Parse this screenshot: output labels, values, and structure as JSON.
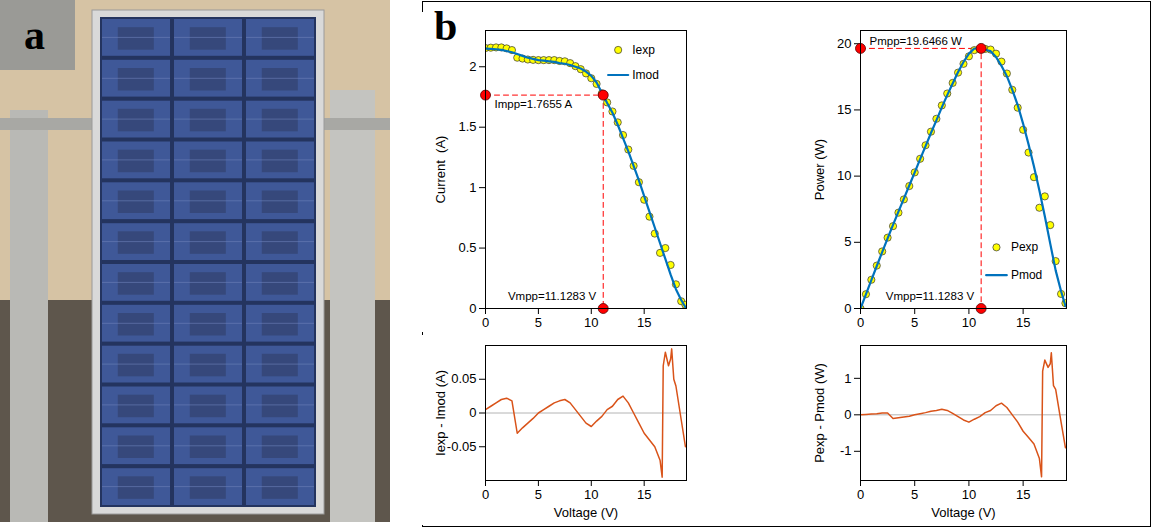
{
  "panel_labels": [
    "a",
    "b"
  ],
  "chart_data": [
    {
      "type": "line",
      "ylabel": "Current  (A)",
      "x": [
        0,
        0.5,
        1,
        1.5,
        2,
        2.5,
        3,
        3.5,
        4,
        4.5,
        5,
        5.5,
        6,
        6.5,
        7,
        7.5,
        8,
        8.5,
        9,
        9.5,
        10,
        10.5,
        11,
        11.5,
        12,
        12.5,
        13,
        13.5,
        14,
        14.5,
        15,
        15.5,
        16,
        16.5,
        17,
        17.5,
        18,
        18.5,
        18.9
      ],
      "xlim": [
        0,
        19
      ],
      "xticks": [
        0,
        5,
        10,
        15
      ],
      "ylim": [
        0,
        2.3
      ],
      "yticks": [
        0,
        0.5,
        1,
        1.5,
        2
      ],
      "legend": "upper right",
      "series": [
        {
          "name": "Iexp",
          "type": "scatter",
          "marker": "circle",
          "color": "#ffff00",
          "values": [
            2.155,
            2.158,
            2.16,
            2.16,
            2.152,
            2.138,
            2.075,
            2.068,
            2.06,
            2.057,
            2.055,
            2.055,
            2.055,
            2.055,
            2.048,
            2.045,
            2.03,
            2.005,
            1.98,
            1.945,
            1.905,
            1.858,
            1.78,
            1.705,
            1.63,
            1.54,
            1.435,
            1.315,
            1.18,
            1.045,
            0.9,
            0.76,
            0.62,
            0.46,
            0.5,
            0.36,
            0.2,
            0.06,
            0.03
          ]
        },
        {
          "name": "Imod",
          "type": "line",
          "line_style": "solid",
          "color": "#0072bd",
          "values": [
            2.15,
            2.148,
            2.145,
            2.14,
            2.13,
            2.12,
            2.105,
            2.09,
            2.075,
            2.065,
            2.055,
            2.05,
            2.045,
            2.04,
            2.03,
            2.025,
            2.015,
            2.0,
            1.985,
            1.96,
            1.925,
            1.87,
            1.785,
            1.7,
            1.62,
            1.52,
            1.41,
            1.3,
            1.18,
            1.06,
            0.93,
            0.8,
            0.67,
            0.54,
            0.41,
            0.28,
            0.16,
            0.07,
            0.01
          ]
        }
      ],
      "mpp": {
        "x": 11.1283,
        "y": 1.7655,
        "color": "#ff0000",
        "line_style": "dashed",
        "labels": {
          "x": "Vmpp=11.1283 V",
          "y": "Impp=1.7655 A"
        }
      }
    },
    {
      "type": "line",
      "ylabel": "Power (W)",
      "x": [
        0,
        0.5,
        1,
        1.5,
        2,
        2.5,
        3,
        3.5,
        4,
        4.5,
        5,
        5.5,
        6,
        6.5,
        7,
        7.5,
        8,
        8.5,
        9,
        9.5,
        10,
        10.5,
        11,
        11.5,
        12,
        12.5,
        13,
        13.5,
        14,
        14.5,
        15,
        15.5,
        16,
        16.5,
        17,
        17.5,
        18,
        18.5,
        18.9
      ],
      "xlim": [
        0,
        19
      ],
      "xticks": [
        0,
        5,
        10,
        15
      ],
      "ylim": [
        0,
        21
      ],
      "yticks": [
        0,
        5,
        10,
        15,
        20
      ],
      "legend": "lower right",
      "series": [
        {
          "name": "Pexp",
          "type": "scatter",
          "marker": "circle",
          "color": "#ffff00",
          "values": [
            0,
            1.08,
            2.17,
            3.24,
            4.31,
            5.35,
            6.22,
            7.24,
            8.24,
            9.25,
            10.28,
            11.31,
            12.33,
            13.36,
            14.33,
            15.34,
            16.24,
            17.04,
            17.82,
            18.48,
            19.05,
            19.52,
            19.59,
            19.61,
            19.56,
            19.25,
            18.65,
            17.75,
            16.52,
            15.17,
            13.5,
            11.78,
            9.92,
            7.61,
            8.47,
            6.3,
            3.58,
            1.1,
            0.4
          ]
        },
        {
          "name": "Pmod",
          "type": "line",
          "line_style": "solid",
          "color": "#0072bd",
          "values": [
            0,
            1.07,
            2.15,
            3.21,
            4.26,
            5.3,
            6.32,
            7.32,
            8.3,
            9.29,
            10.28,
            11.28,
            12.27,
            13.26,
            14.21,
            15.19,
            16.12,
            17.0,
            17.87,
            18.62,
            19.25,
            19.64,
            19.64,
            19.55,
            19.44,
            19.0,
            18.33,
            17.55,
            16.52,
            15.37,
            13.95,
            12.4,
            10.72,
            8.91,
            6.97,
            4.9,
            2.88,
            1.3,
            0.19
          ]
        }
      ],
      "mpp": {
        "x": 11.1283,
        "y": 19.6466,
        "color": "#ff0000",
        "line_style": "dashed",
        "labels": {
          "x": "Vmpp=11.1283 V",
          "y": "Pmpp=19.6466 W"
        }
      }
    },
    {
      "type": "line",
      "xlabel": "Voltage (V)",
      "ylabel": "Iexp - Imod (A)",
      "x": [
        0,
        0.5,
        1,
        1.5,
        2,
        2.5,
        3,
        3.5,
        4,
        4.5,
        5,
        5.5,
        6,
        6.5,
        7,
        7.5,
        8,
        8.5,
        9,
        9.5,
        10,
        10.5,
        11,
        11.5,
        12,
        12.5,
        13,
        13.5,
        14,
        14.5,
        15,
        15.5,
        16,
        16.5,
        16.7,
        16.8,
        17,
        17.3,
        17.5,
        17.6,
        17.8,
        18,
        18.5,
        18.9
      ],
      "xlim": [
        0,
        19
      ],
      "xticks": [
        0,
        5,
        10,
        15
      ],
      "ylim": [
        -0.1,
        0.1
      ],
      "yticks": [
        -0.05,
        0,
        0.05
      ],
      "hline": 0,
      "color": "#d95319",
      "values": [
        0.005,
        0.01,
        0.015,
        0.02,
        0.022,
        0.018,
        -0.03,
        -0.022,
        -0.015,
        -0.008,
        0,
        0.005,
        0.01,
        0.015,
        0.018,
        0.02,
        0.015,
        0.005,
        -0.005,
        -0.015,
        -0.02,
        -0.012,
        -0.005,
        0.005,
        0.01,
        0.02,
        0.025,
        0.015,
        0,
        -0.015,
        -0.03,
        -0.04,
        -0.05,
        -0.07,
        -0.095,
        0.07,
        0.09,
        0.07,
        0.08,
        0.095,
        0.05,
        0.04,
        -0.01,
        -0.05
      ]
    },
    {
      "type": "line",
      "xlabel": "Voltage (V)",
      "ylabel": "Pexp - Pmod (W)",
      "x": [
        0,
        0.5,
        1,
        1.5,
        2,
        2.5,
        3,
        3.5,
        4,
        4.5,
        5,
        5.5,
        6,
        6.5,
        7,
        7.5,
        8,
        8.5,
        9,
        9.5,
        10,
        10.5,
        11,
        11.5,
        12,
        12.5,
        13,
        13.5,
        14,
        14.5,
        15,
        15.5,
        16,
        16.5,
        16.7,
        16.8,
        17,
        17.3,
        17.5,
        17.6,
        17.8,
        18,
        18.5,
        18.9
      ],
      "xlim": [
        0,
        19
      ],
      "xticks": [
        0,
        5,
        10,
        15
      ],
      "ylim": [
        -1.8,
        1.9
      ],
      "yticks": [
        -1,
        0,
        1
      ],
      "hline": 0,
      "color": "#d95319",
      "values": [
        0,
        0.01,
        0.02,
        0.03,
        0.05,
        0.05,
        -0.1,
        -0.08,
        -0.06,
        -0.04,
        0,
        0.03,
        0.06,
        0.1,
        0.12,
        0.15,
        0.12,
        0.04,
        -0.05,
        -0.14,
        -0.2,
        -0.12,
        -0.05,
        0.06,
        0.12,
        0.25,
        0.32,
        0.2,
        0,
        -0.2,
        -0.45,
        -0.62,
        -0.8,
        -1.2,
        -1.7,
        1.2,
        1.5,
        1.3,
        1.4,
        1.7,
        0.8,
        0.7,
        -0.2,
        -0.9
      ]
    }
  ]
}
